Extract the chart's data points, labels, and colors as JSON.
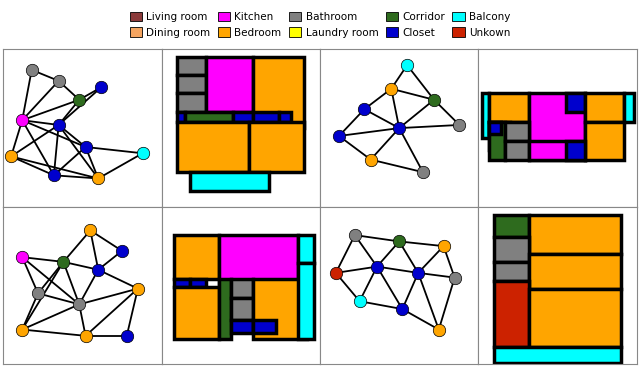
{
  "legend_items": [
    {
      "label": "Living room",
      "color": "#8B3A3A"
    },
    {
      "label": "Dining room",
      "color": "#F4A460"
    },
    {
      "label": "Kitchen",
      "color": "#FF00FF"
    },
    {
      "label": "Bedroom",
      "color": "#FFA500"
    },
    {
      "label": "Bathroom",
      "color": "#808080"
    },
    {
      "label": "Laundry room",
      "color": "#FFFF00"
    },
    {
      "label": "Corridor",
      "color": "#2E6B1E"
    },
    {
      "label": "Closet",
      "color": "#0000CD"
    },
    {
      "label": "Balcony",
      "color": "#00FFFF"
    },
    {
      "label": "Unkown",
      "color": "#CC2200"
    }
  ]
}
